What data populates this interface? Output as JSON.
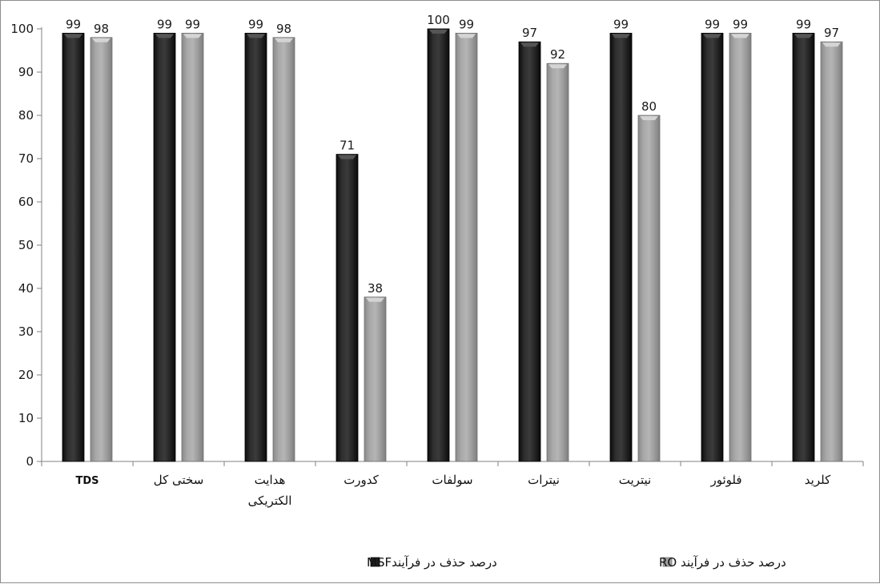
{
  "chart_data": {
    "type": "bar",
    "categories": [
      "TDS",
      "سختی کل",
      "هدایت الکتریکی",
      "کدورت",
      "سولفات",
      "نیترات",
      "نیتریت",
      "فلوئور",
      "کلرید"
    ],
    "series": [
      {
        "name": "درصد حذف در فرآیندMSF",
        "values": [
          99,
          99,
          99,
          71,
          100,
          97,
          99,
          99,
          99
        ],
        "color": "#1f1f1f"
      },
      {
        "name": "درصد حذف در فرآیند RO",
        "values": [
          98,
          99,
          98,
          38,
          99,
          92,
          80,
          99,
          97
        ],
        "color": "#9e9e9e"
      }
    ],
    "ylim": [
      0,
      100
    ],
    "yticks": [
      0,
      10,
      20,
      30,
      40,
      50,
      60,
      70,
      80,
      90,
      100
    ],
    "grid": false,
    "legend": "bottom",
    "data_labels": true
  }
}
